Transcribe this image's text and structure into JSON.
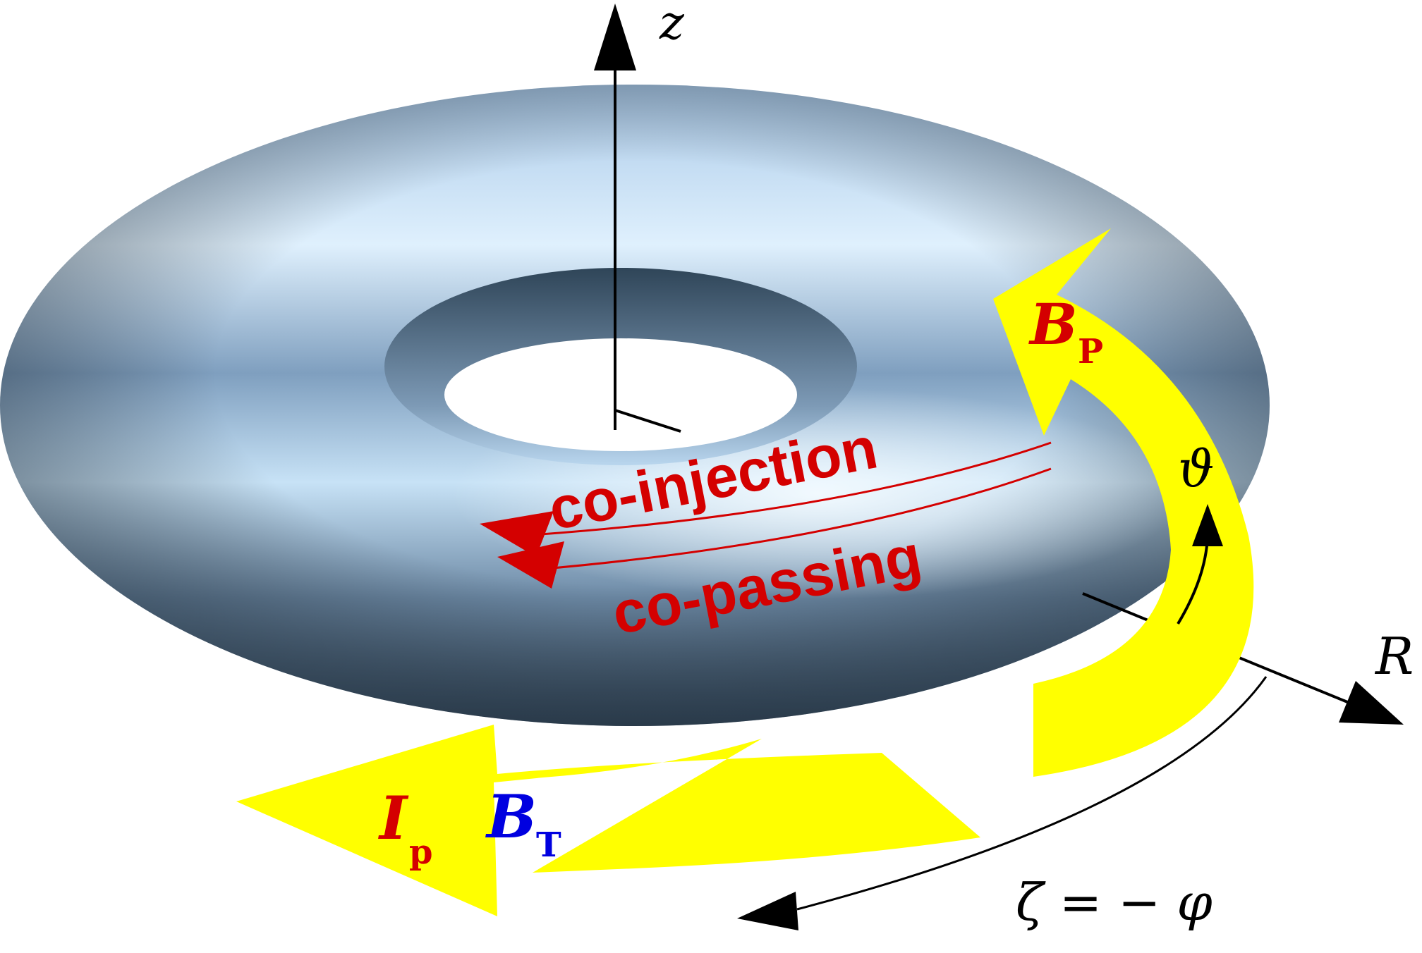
{
  "labels": {
    "z_axis": "z",
    "r_axis": "R",
    "theta": "ϑ",
    "zeta_eq": "ζ = − φ",
    "co_injection": "co-injection",
    "co_passing": "co-passing",
    "bp_main": "B",
    "bp_sub": "P",
    "ip_main": "I",
    "ip_sub": "p",
    "bt_main": "B",
    "bt_sub": "T"
  },
  "colors": {
    "torus_light": "#d8ecfb",
    "torus_mid": "#8fb4d6",
    "torus_dark": "#33475a",
    "arrow_yellow": "#ffff00",
    "label_red": "#d40000",
    "label_blue": "#0000e0",
    "axis_black": "#000000"
  }
}
